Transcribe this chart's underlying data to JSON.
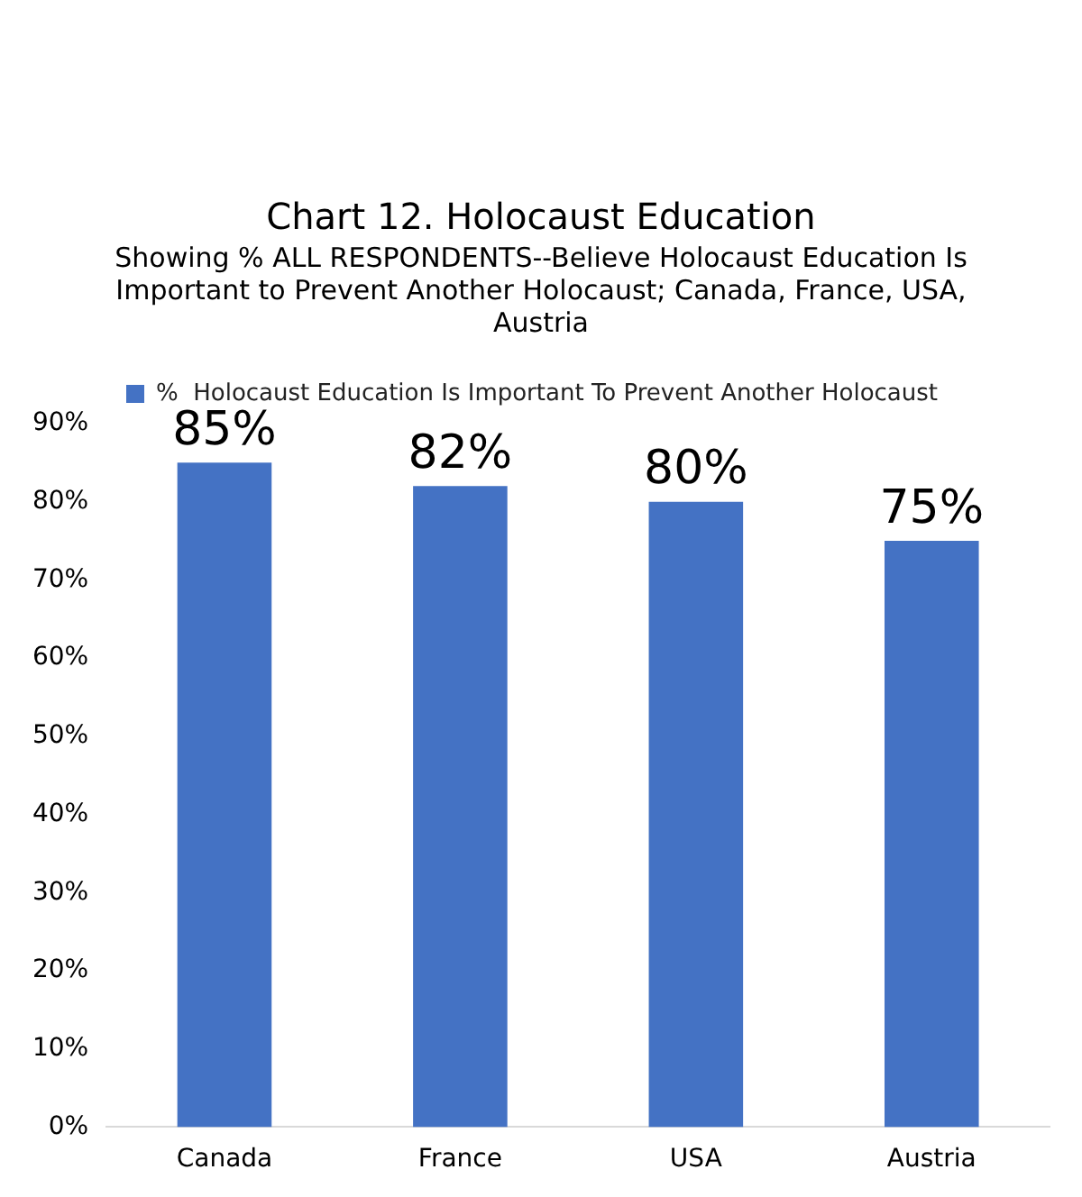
{
  "chart_data": {
    "type": "bar",
    "title": "Chart 12. Holocaust Education",
    "subtitle": "Showing % ALL RESPONDENTS--Believe Holocaust Education Is Important to Prevent Another Holocaust; Canada, France, USA, Austria",
    "categories": [
      "Canada",
      "France",
      "USA",
      "Austria"
    ],
    "series": [
      {
        "name": "%  Holocaust Education Is Important To Prevent Another Holocaust",
        "color": "#4472c4",
        "values": [
          85,
          82,
          80,
          75
        ],
        "value_labels": [
          "85%",
          "82%",
          "80%",
          "75%"
        ]
      }
    ],
    "ylim": [
      0,
      90
    ],
    "yticks": [
      {
        "value": 0,
        "label": "0%"
      },
      {
        "value": 10,
        "label": "10%"
      },
      {
        "value": 20,
        "label": "20%"
      },
      {
        "value": 30,
        "label": "30%"
      },
      {
        "value": 40,
        "label": "40%"
      },
      {
        "value": 50,
        "label": "50%"
      },
      {
        "value": 60,
        "label": "60%"
      },
      {
        "value": 70,
        "label": "70%"
      },
      {
        "value": 80,
        "label": "80%"
      },
      {
        "value": 90,
        "label": "90%"
      }
    ],
    "grid": false,
    "legend": "top"
  }
}
